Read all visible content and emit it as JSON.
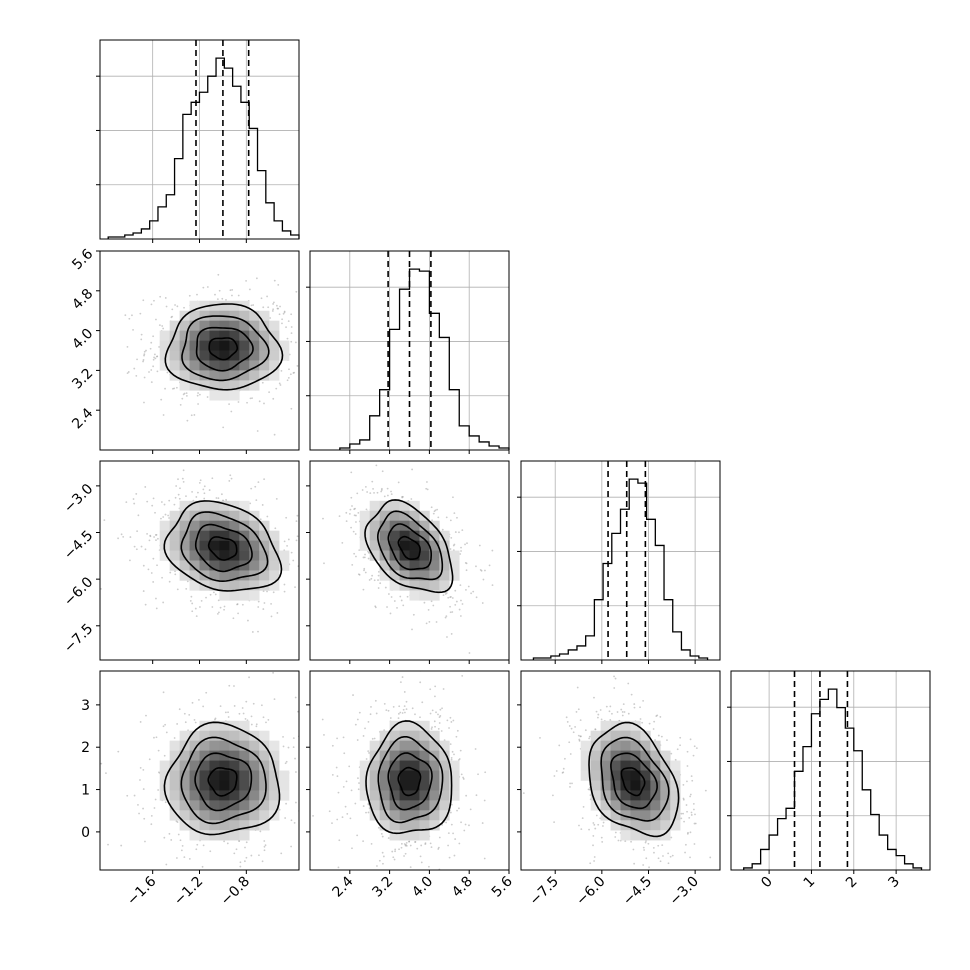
{
  "chart_data": {
    "type": "corner",
    "title": "",
    "grid": true,
    "quantile_fractions": [
      0.16,
      0.5,
      0.84
    ],
    "colors": {
      "line": "#000000",
      "grid": "#b0b0b0",
      "points": "#9a9a9a",
      "density_dark": "#000000",
      "density_light": "#ffffff"
    },
    "params": [
      {
        "range": [
          -2.05,
          -0.35
        ],
        "ticks": [
          -1.6,
          -1.2,
          -0.8
        ],
        "tick_labels": [
          "−1.6",
          "−1.2",
          "−0.8"
        ],
        "quantiles": [
          -1.23,
          -1.0,
          -0.78
        ],
        "hist": {
          "x_start": -1.98,
          "x_end": -0.35,
          "counts": [
            1,
            1,
            2,
            3,
            5,
            9,
            16,
            22,
            40,
            62,
            68,
            73,
            81,
            90,
            85,
            76,
            68,
            55,
            34,
            18,
            9,
            4,
            2
          ]
        }
      },
      {
        "range": [
          1.6,
          5.6
        ],
        "ticks": [
          2.4,
          3.2,
          4.0,
          4.8,
          5.6
        ],
        "tick_labels": [
          "2.4",
          "3.2",
          "4.0",
          "4.8",
          "5.6"
        ],
        "quantiles": [
          3.17,
          3.6,
          4.03
        ],
        "hist": {
          "x_start": 2.2,
          "x_end": 5.6,
          "counts": [
            1,
            3,
            5,
            17,
            30,
            60,
            80,
            90,
            89,
            68,
            56,
            30,
            12,
            7,
            4,
            2,
            1
          ]
        }
      },
      {
        "range": [
          -8.6,
          -2.2
        ],
        "ticks": [
          -7.5,
          -6.0,
          -4.5,
          -3.0
        ],
        "tick_labels": [
          "−7.5",
          "−6.0",
          "−4.5",
          "−3.0"
        ],
        "quantiles": [
          -5.8,
          -5.2,
          -4.6
        ],
        "hist": {
          "x_start": -8.2,
          "x_end": -2.6,
          "counts": [
            1,
            1,
            2,
            3,
            5,
            7,
            12,
            30,
            48,
            63,
            75,
            90,
            88,
            70,
            57,
            30,
            14,
            5,
            2,
            1
          ]
        }
      },
      {
        "range": [
          -0.9,
          3.8
        ],
        "ticks": [
          0,
          1,
          2,
          3
        ],
        "tick_labels": [
          "0",
          "1",
          "2",
          "3"
        ],
        "quantiles": [
          0.6,
          1.2,
          1.85
        ],
        "hist": {
          "x_start": -0.6,
          "x_end": 3.6,
          "counts": [
            1,
            3,
            10,
            17,
            25,
            30,
            48,
            60,
            76,
            83,
            88,
            79,
            69,
            58,
            39,
            27,
            17,
            10,
            7,
            3,
            1
          ]
        }
      }
    ],
    "pairs": [
      {
        "x": 0,
        "y": 1,
        "mean": [
          -1.0,
          3.65
        ],
        "sd": [
          0.24,
          0.43
        ],
        "corr": 0.0
      },
      {
        "x": 0,
        "y": 2,
        "mean": [
          -1.0,
          -5.0
        ],
        "sd": [
          0.24,
          0.72
        ],
        "corr": -0.22
      },
      {
        "x": 1,
        "y": 2,
        "mean": [
          3.6,
          -5.0
        ],
        "sd": [
          0.43,
          0.72
        ],
        "corr": -0.4
      },
      {
        "x": 0,
        "y": 3,
        "mean": [
          -1.0,
          1.2
        ],
        "sd": [
          0.24,
          0.65
        ],
        "corr": 0.0
      },
      {
        "x": 1,
        "y": 3,
        "mean": [
          3.6,
          1.2
        ],
        "sd": [
          0.43,
          0.65
        ],
        "corr": 0.0
      },
      {
        "x": 2,
        "y": 3,
        "mean": [
          -5.0,
          1.2
        ],
        "sd": [
          0.72,
          0.65
        ],
        "corr": -0.3
      }
    ]
  }
}
